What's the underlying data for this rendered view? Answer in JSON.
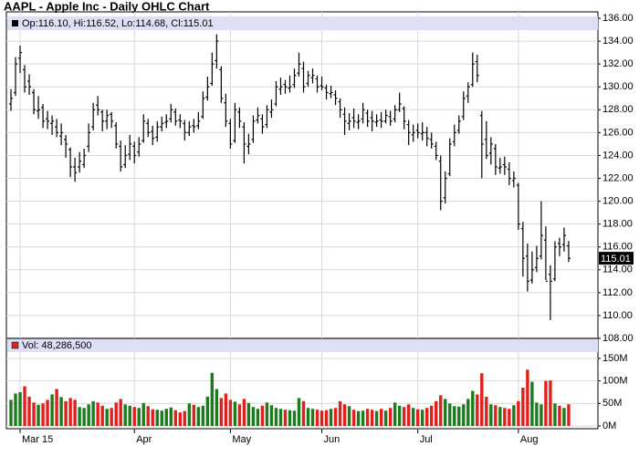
{
  "chart_data": {
    "type": "ohlc",
    "title": "AAPL - Apple Inc - Daily OHLC Chart",
    "price_label": "Op:116.10, Hi:116.52, Lo:114.68, Cl:115.01",
    "volume_label": "Vol: 48,286,500",
    "last_label": "115.01",
    "up_color": "#1e7a1e",
    "down_color": "#e0201c",
    "xlim": [
      -1,
      128.4
    ],
    "xticks": [
      {
        "value": 2,
        "label": "Mar 15"
      },
      {
        "value": 27,
        "label": "Apr"
      },
      {
        "value": 48,
        "label": "May"
      },
      {
        "value": 68,
        "label": "Jun"
      },
      {
        "value": 89,
        "label": "Jul"
      },
      {
        "value": 111,
        "label": "Aug"
      }
    ],
    "ylim": [
      108,
      136.56
    ],
    "yticks": [
      {
        "value": 108,
        "label": "108.00"
      },
      {
        "value": 110,
        "label": "110.00"
      },
      {
        "value": 112,
        "label": "112.00"
      },
      {
        "value": 114,
        "label": "114.00"
      },
      {
        "value": 116,
        "label": "116.00"
      },
      {
        "value": 118,
        "label": "118.00"
      },
      {
        "value": 120,
        "label": "120.00"
      },
      {
        "value": 122,
        "label": "122.00"
      },
      {
        "value": 124,
        "label": "124.00"
      },
      {
        "value": 126,
        "label": "126.00"
      },
      {
        "value": 128,
        "label": "128.00"
      },
      {
        "value": 130,
        "label": "130.00"
      },
      {
        "value": 132,
        "label": "132.00"
      },
      {
        "value": 134,
        "label": "134.00"
      },
      {
        "value": 136,
        "label": "136.00"
      }
    ],
    "volume_ylim": [
      0,
      160000000
    ],
    "volume_yticks": [
      {
        "value": 0,
        "label": "0M"
      },
      {
        "value": 50000000,
        "label": "50M"
      },
      {
        "value": 100000000,
        "label": "100M"
      },
      {
        "value": 150000000,
        "label": "150M"
      }
    ],
    "grid": true,
    "bars": [
      [
        128.5,
        129.8,
        127.9,
        129,
        58000000.0
      ],
      [
        129.5,
        132.6,
        129.2,
        132,
        72000000.0
      ],
      [
        132.5,
        133.6,
        131.2,
        133,
        75000000.0
      ],
      [
        131.5,
        131.9,
        129.5,
        130,
        88000000.0
      ],
      [
        130.5,
        131.1,
        129.3,
        130,
        65000000.0
      ],
      [
        129.5,
        129.8,
        127.6,
        128,
        52000000.0
      ],
      [
        127.9,
        129.2,
        127.2,
        128,
        47000000.0
      ],
      [
        128.2,
        128.5,
        126.4,
        127,
        50000000.0
      ],
      [
        127.2,
        127.9,
        126.3,
        127,
        58000000.0
      ],
      [
        126.8,
        127.5,
        125.8,
        127,
        70000000.0
      ],
      [
        126.5,
        127.2,
        125.6,
        126,
        82000000.0
      ],
      [
        125.7,
        126.8,
        124.9,
        126,
        64000000.0
      ],
      [
        125.4,
        125.8,
        123.8,
        125,
        55000000.0
      ],
      [
        124.5,
        124.7,
        122.1,
        123,
        62000000.0
      ],
      [
        123,
        123.8,
        121.7,
        122.5,
        58000000.0
      ],
      [
        123,
        124.3,
        122.5,
        123.5,
        42000000.0
      ],
      [
        123.2,
        124.6,
        122.9,
        124,
        40000000.0
      ],
      [
        124.8,
        126.8,
        124.3,
        126,
        48000000.0
      ],
      [
        126.5,
        128.6,
        126.2,
        128,
        55000000.0
      ],
      [
        128.4,
        129.2,
        127.5,
        128,
        52000000.0
      ],
      [
        127.8,
        128,
        126.1,
        127,
        45000000.0
      ],
      [
        127,
        128,
        126.3,
        127.5,
        38000000.0
      ],
      [
        127.6,
        127.8,
        126.4,
        127,
        40000000.0
      ],
      [
        126.6,
        126.9,
        124.6,
        125,
        52000000.0
      ],
      [
        124.8,
        125.3,
        122.6,
        123,
        60000000.0
      ],
      [
        123.2,
        124.9,
        122.9,
        124,
        48000000.0
      ],
      [
        124.1,
        125.8,
        123.6,
        125,
        45000000.0
      ],
      [
        124.8,
        125.2,
        123.3,
        124,
        42000000.0
      ],
      [
        124.3,
        125.6,
        123.9,
        125,
        40000000.0
      ],
      [
        125.3,
        127.6,
        125.1,
        127,
        51000000.0
      ],
      [
        126.8,
        127.2,
        125.6,
        126,
        44000000.0
      ],
      [
        126.1,
        126.6,
        124.9,
        125.5,
        37000000.0
      ],
      [
        125.6,
        127,
        125.2,
        126.5,
        36000000.0
      ],
      [
        126.5,
        127.4,
        126.1,
        126.8,
        34000000.0
      ],
      [
        126.9,
        127.6,
        126.4,
        127,
        38000000.0
      ],
      [
        127.2,
        128.5,
        126.9,
        128,
        41000000.0
      ],
      [
        127.8,
        128.1,
        126.6,
        127,
        35000000.0
      ],
      [
        127.1,
        127.6,
        126.4,
        127,
        30000000.0
      ],
      [
        126.8,
        127.1,
        125.3,
        126,
        33000000.0
      ],
      [
        126,
        127,
        125.7,
        126.5,
        50000000.0
      ],
      [
        126.6,
        127.2,
        126,
        126.5,
        47000000.0
      ],
      [
        126.6,
        127.8,
        126.3,
        127,
        42000000.0
      ],
      [
        127.4,
        129.6,
        127.2,
        129,
        45000000.0
      ],
      [
        129.1,
        130.9,
        128.8,
        130,
        65000000.0
      ],
      [
        130.3,
        133,
        130.1,
        132,
        118000000.0
      ],
      [
        132.3,
        134.6,
        131.6,
        134,
        82000000.0
      ],
      [
        131.5,
        131.8,
        128.6,
        129,
        62000000.0
      ],
      [
        128.6,
        129.4,
        126.5,
        127,
        72000000.0
      ],
      [
        126.8,
        127.2,
        124.6,
        125,
        58000000.0
      ],
      [
        125.3,
        128.6,
        125.1,
        128,
        54000000.0
      ],
      [
        127.8,
        128.2,
        126.4,
        127,
        48000000.0
      ],
      [
        126.5,
        126.9,
        123.3,
        125,
        60000000.0
      ],
      [
        124.8,
        125.9,
        124.1,
        125,
        51000000.0
      ],
      [
        125.4,
        127.5,
        125.1,
        127,
        42000000.0
      ],
      [
        127.1,
        128.2,
        126.8,
        127.5,
        38000000.0
      ],
      [
        127.2,
        127.6,
        125.9,
        126.5,
        45000000.0
      ],
      [
        126.7,
        128.4,
        126.4,
        128,
        52000000.0
      ],
      [
        127.8,
        128.9,
        127.3,
        128,
        46000000.0
      ],
      [
        128.5,
        130.5,
        128.3,
        130,
        40000000.0
      ],
      [
        129.8,
        130.8,
        129.3,
        130,
        38000000.0
      ],
      [
        130.2,
        130.6,
        129.4,
        130,
        36000000.0
      ],
      [
        129.9,
        131,
        129.5,
        130,
        35000000.0
      ],
      [
        130.2,
        131.6,
        129.9,
        131,
        34000000.0
      ],
      [
        131.2,
        133,
        130.9,
        132,
        62000000.0
      ],
      [
        131.6,
        132.2,
        129.5,
        130,
        55000000.0
      ],
      [
        130.3,
        131.4,
        130,
        131,
        40000000.0
      ],
      [
        130.8,
        131.6,
        130.3,
        131,
        38000000.0
      ],
      [
        130.7,
        131,
        129.5,
        130,
        36000000.0
      ],
      [
        130.1,
        130.9,
        129.7,
        130,
        34000000.0
      ],
      [
        129.9,
        130.2,
        128.9,
        129.5,
        35000000.0
      ],
      [
        129.4,
        130.1,
        129,
        129.5,
        38000000.0
      ],
      [
        129.3,
        129.7,
        128.4,
        129,
        40000000.0
      ],
      [
        128.7,
        129,
        127.3,
        128,
        55000000.0
      ],
      [
        127.6,
        128.2,
        125.8,
        127,
        48000000.0
      ],
      [
        126.8,
        127.7,
        126.2,
        127,
        44000000.0
      ],
      [
        127.3,
        128.1,
        126.4,
        127,
        36000000.0
      ],
      [
        126.9,
        127.6,
        126.3,
        127,
        33000000.0
      ],
      [
        127.2,
        128.6,
        126.8,
        128,
        34000000.0
      ],
      [
        127.7,
        128,
        126.5,
        127,
        38000000.0
      ],
      [
        127.3,
        127.9,
        126.1,
        127,
        36000000.0
      ],
      [
        126.9,
        127.6,
        126.5,
        127,
        33000000.0
      ],
      [
        127.1,
        127.8,
        126.4,
        127,
        38000000.0
      ],
      [
        127,
        128,
        126.8,
        127.5,
        34000000.0
      ],
      [
        127.4,
        127.9,
        126.6,
        127,
        40000000.0
      ],
      [
        127.2,
        128.4,
        126.9,
        128,
        52000000.0
      ],
      [
        128,
        129.5,
        127.8,
        128.5,
        45000000.0
      ],
      [
        128.1,
        128.3,
        126.3,
        127,
        42000000.0
      ],
      [
        126.7,
        127.1,
        124.9,
        126,
        48000000.0
      ],
      [
        125.8,
        126.7,
        125.2,
        126,
        40000000.0
      ],
      [
        126.2,
        126.8,
        125.5,
        126,
        37000000.0
      ],
      [
        125.9,
        126.9,
        125.3,
        126,
        36000000.0
      ],
      [
        126,
        126.5,
        124.8,
        125.5,
        40000000.0
      ],
      [
        125.4,
        126,
        124.6,
        125,
        45000000.0
      ],
      [
        124.8,
        125.2,
        123.6,
        124,
        55000000.0
      ],
      [
        123.5,
        124,
        119.2,
        120,
        68000000.0
      ],
      [
        120.3,
        122.6,
        119.8,
        122,
        60000000.0
      ],
      [
        122.4,
        125.5,
        122.2,
        125,
        50000000.0
      ],
      [
        125.2,
        126.7,
        124.8,
        126,
        44000000.0
      ],
      [
        126.2,
        127.5,
        125.9,
        127,
        43000000.0
      ],
      [
        127.4,
        129.6,
        127.1,
        129,
        48000000.0
      ],
      [
        129.2,
        130.4,
        128.6,
        130,
        60000000.0
      ],
      [
        130.2,
        133,
        130,
        132,
        78000000.0
      ],
      [
        132.2,
        132.8,
        130.4,
        131,
        70000000.0
      ],
      [
        127.5,
        127.9,
        122,
        125,
        117000000.0
      ],
      [
        125.4,
        127,
        123.7,
        124,
        65000000.0
      ],
      [
        124.2,
        125.6,
        123.2,
        125,
        48000000.0
      ],
      [
        124.6,
        125,
        122.3,
        123,
        46000000.0
      ],
      [
        122.9,
        123.8,
        122.4,
        123,
        42000000.0
      ],
      [
        123.2,
        123.9,
        122.3,
        123,
        40000000.0
      ],
      [
        122.8,
        123.4,
        121.4,
        122,
        38000000.0
      ],
      [
        121.8,
        122.6,
        121.2,
        122,
        46000000.0
      ],
      [
        121.4,
        121.6,
        117.5,
        118,
        55000000.0
      ],
      [
        117.6,
        118.2,
        113.4,
        115,
        85000000.0
      ],
      [
        115.2,
        116.3,
        112.1,
        113,
        125000000.0
      ],
      [
        113.1,
        115.6,
        112.8,
        114,
        98000000.0
      ],
      [
        114.2,
        116.1,
        113.8,
        115,
        52000000.0
      ],
      [
        115.2,
        120,
        114.9,
        117,
        48000000.0
      ],
      [
        116.6,
        117.8,
        113.1,
        113,
        100000000.0
      ],
      [
        113.6,
        114.4,
        109.6,
        113,
        101000000.0
      ],
      [
        113.2,
        116.5,
        113,
        116,
        50000000.0
      ],
      [
        116.3,
        116.8,
        115.2,
        116,
        45000000.0
      ],
      [
        116.2,
        117.7,
        115.6,
        117,
        40000000.0
      ],
      [
        116.1,
        116.52,
        114.68,
        115.01,
        48286500
      ]
    ]
  }
}
